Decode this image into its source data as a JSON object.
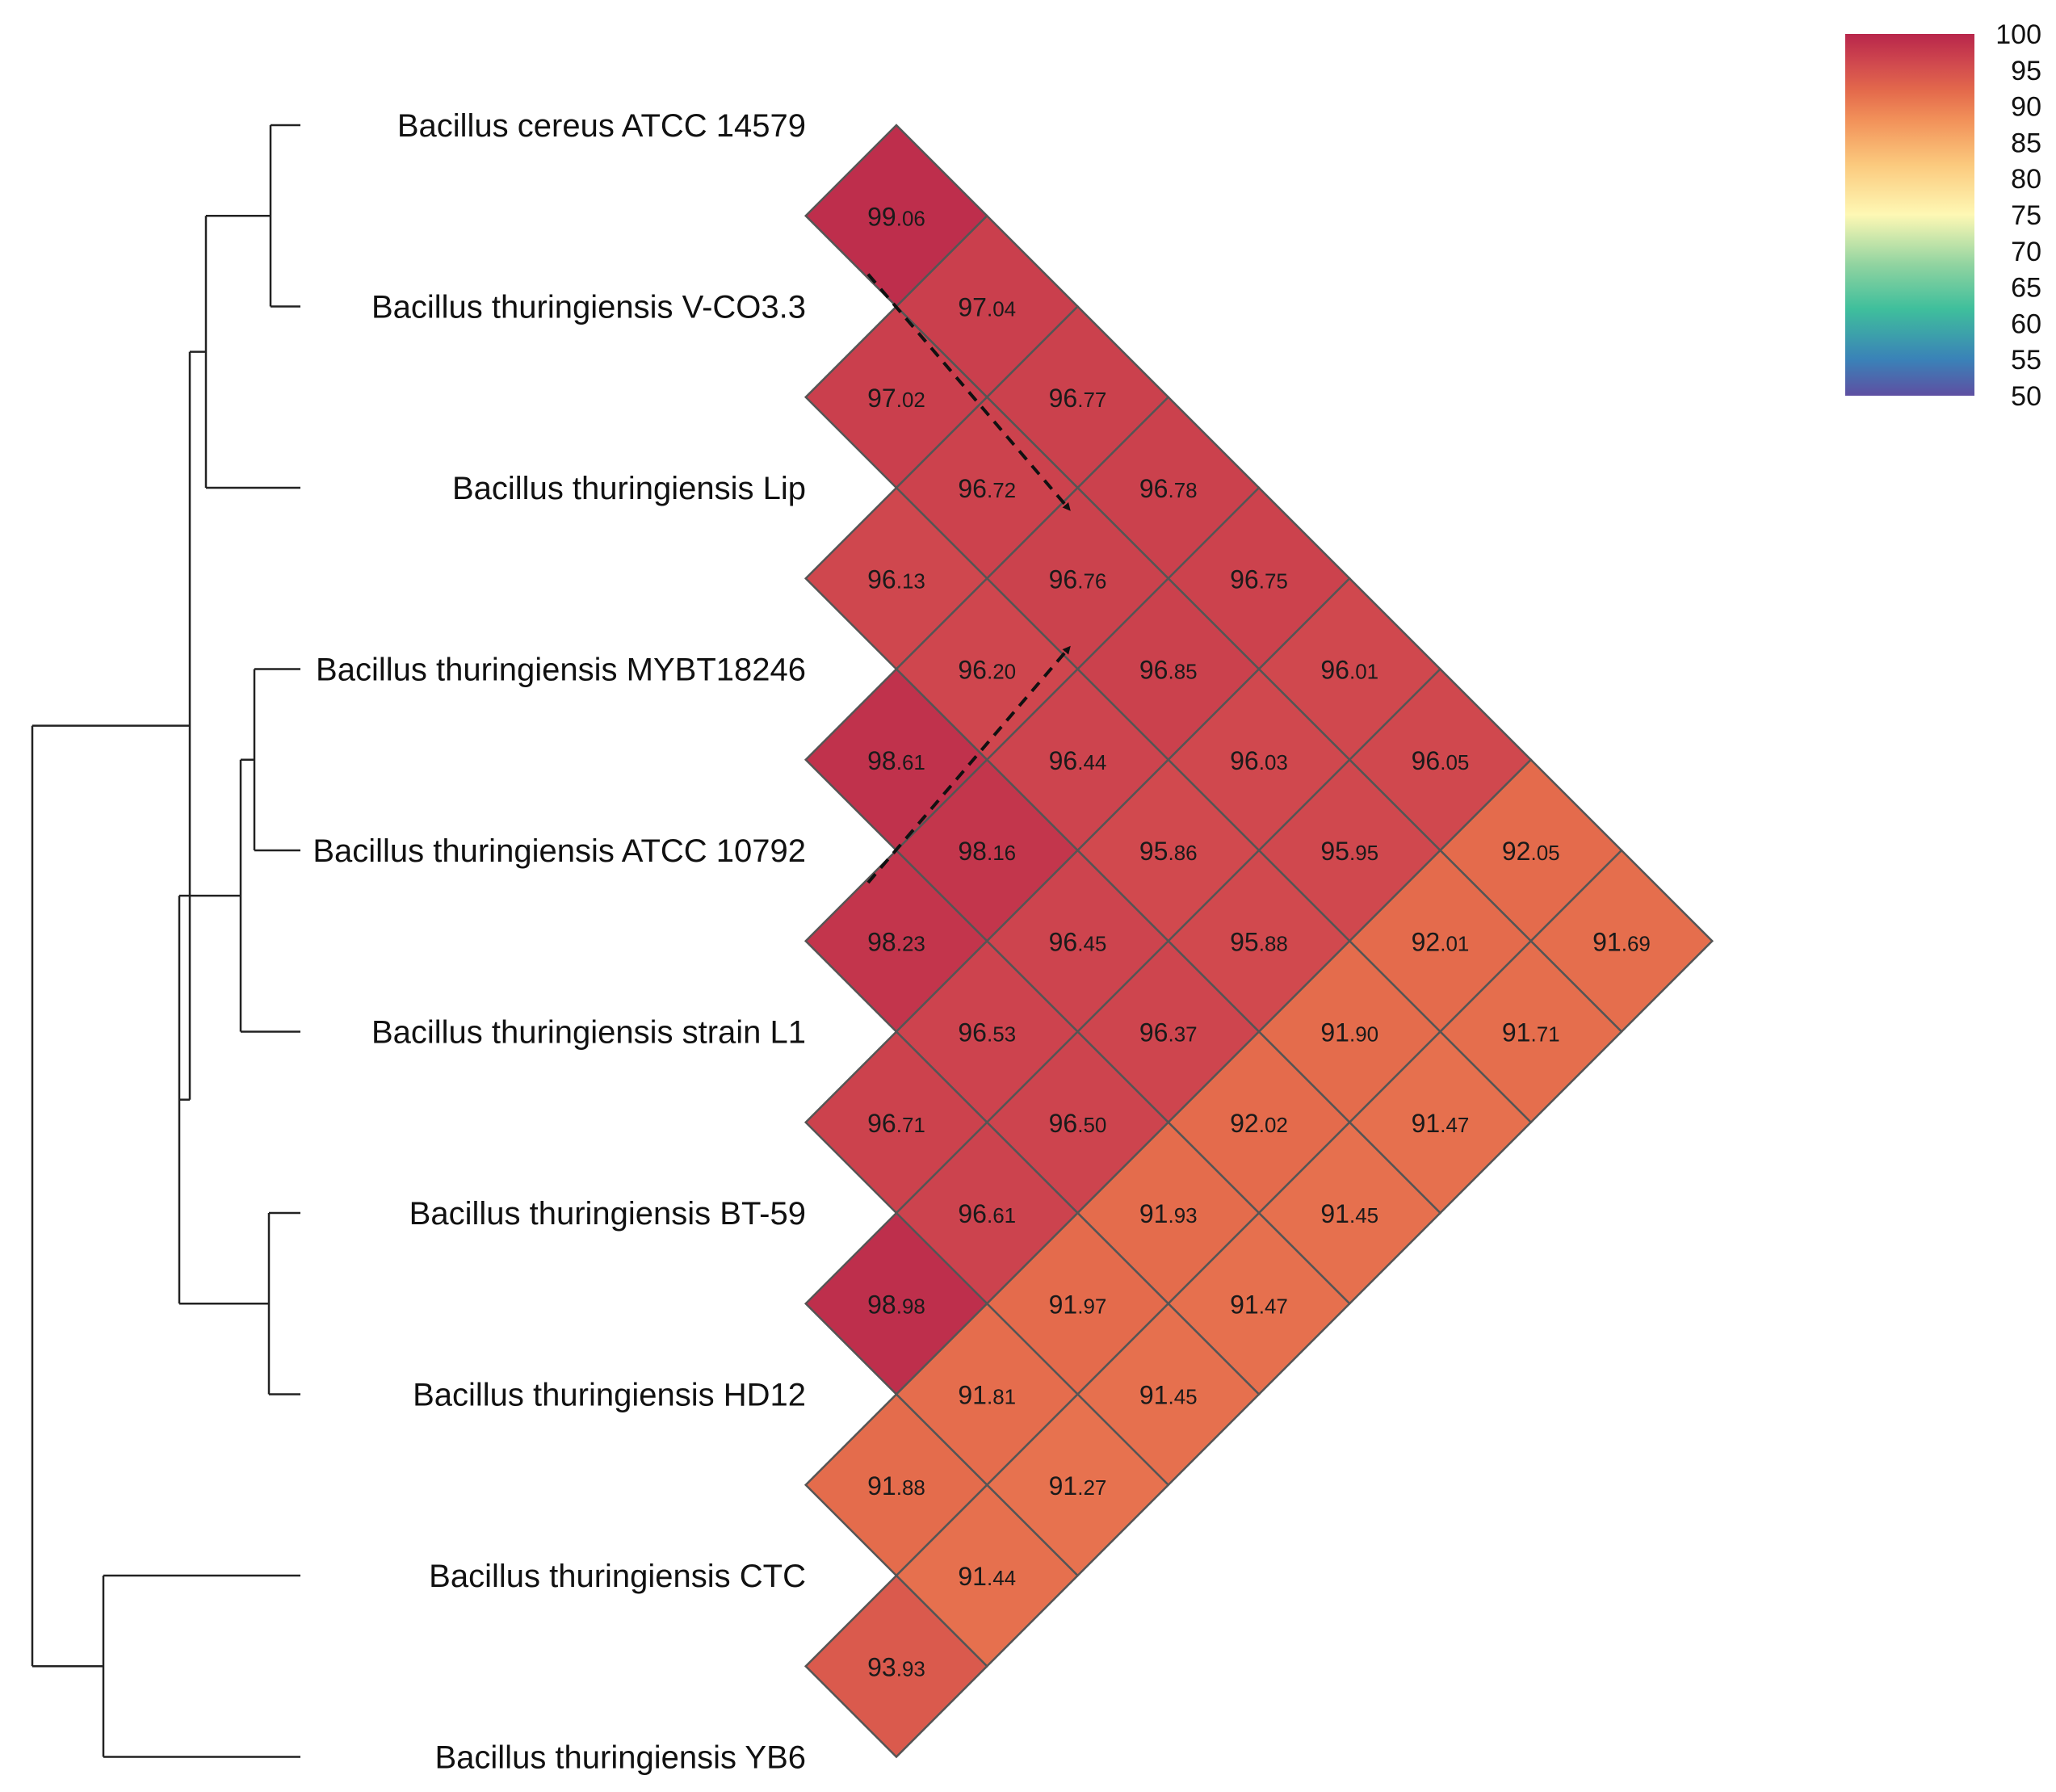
{
  "chart_data": {
    "type": "heatmap",
    "title": "",
    "layout": "lower-triangle rotated 45 degrees with dendrogram",
    "taxa": [
      "Bacillus cereus ATCC 14579",
      "Bacillus thuringiensis V-CO3.3",
      "Bacillus thuringiensis Lip",
      "Bacillus thuringiensis MYBT18246",
      "Bacillus thuringiensis ATCC 10792",
      "Bacillus thuringiensis strain L1",
      "Bacillus thuringiensis BT-59",
      "Bacillus thuringiensis HD12",
      "Bacillus thuringiensis CTC",
      "Bacillus thuringiensis YB6"
    ],
    "value_labels": [
      "99.06",
      "97.04",
      "97.02",
      "96.77",
      "96.72",
      "96.78",
      "96.13",
      "96.76",
      "96.75",
      "96.20",
      "96.85",
      "96.01",
      "98.61",
      "96.44",
      "96.03",
      "96.05",
      "98.16",
      "95.86",
      "95.95",
      "92.05",
      "98.23",
      "96.45",
      "95.88",
      "92.01",
      "91.69",
      "96.53",
      "96.37",
      "91.90",
      "91.71",
      "96.71",
      "96.50",
      "92.02",
      "91.47",
      "96.61",
      "91.93",
      "91.45",
      "98.98",
      "91.97",
      "91.47",
      "91.81",
      "91.45",
      "91.88",
      "91.27",
      "91.44",
      "93.93"
    ],
    "cells": [
      {
        "i": 0,
        "j": 1,
        "value": 99.06
      },
      {
        "i": 0,
        "j": 2,
        "value": 97.04
      },
      {
        "i": 1,
        "j": 2,
        "value": 97.02
      },
      {
        "i": 0,
        "j": 3,
        "value": 96.77
      },
      {
        "i": 1,
        "j": 3,
        "value": 96.72
      },
      {
        "i": 0,
        "j": 4,
        "value": 96.78
      },
      {
        "i": 2,
        "j": 3,
        "value": 96.13
      },
      {
        "i": 1,
        "j": 4,
        "value": 96.76
      },
      {
        "i": 0,
        "j": 5,
        "value": 96.75
      },
      {
        "i": 2,
        "j": 4,
        "value": 96.2
      },
      {
        "i": 1,
        "j": 5,
        "value": 96.85
      },
      {
        "i": 0,
        "j": 6,
        "value": 96.01
      },
      {
        "i": 3,
        "j": 4,
        "value": 98.61
      },
      {
        "i": 2,
        "j": 5,
        "value": 96.44
      },
      {
        "i": 1,
        "j": 6,
        "value": 96.03
      },
      {
        "i": 0,
        "j": 7,
        "value": 96.05
      },
      {
        "i": 3,
        "j": 5,
        "value": 98.16
      },
      {
        "i": 2,
        "j": 6,
        "value": 95.86
      },
      {
        "i": 1,
        "j": 7,
        "value": 95.95
      },
      {
        "i": 0,
        "j": 8,
        "value": 92.05
      },
      {
        "i": 4,
        "j": 5,
        "value": 98.23
      },
      {
        "i": 3,
        "j": 6,
        "value": 96.45
      },
      {
        "i": 2,
        "j": 7,
        "value": 95.88
      },
      {
        "i": 1,
        "j": 8,
        "value": 92.01
      },
      {
        "i": 0,
        "j": 9,
        "value": 91.69
      },
      {
        "i": 4,
        "j": 6,
        "value": 96.53
      },
      {
        "i": 3,
        "j": 7,
        "value": 96.37
      },
      {
        "i": 2,
        "j": 8,
        "value": 91.9
      },
      {
        "i": 1,
        "j": 9,
        "value": 91.71
      },
      {
        "i": 5,
        "j": 6,
        "value": 96.71
      },
      {
        "i": 4,
        "j": 7,
        "value": 96.5
      },
      {
        "i": 3,
        "j": 8,
        "value": 92.02
      },
      {
        "i": 2,
        "j": 9,
        "value": 91.47
      },
      {
        "i": 5,
        "j": 7,
        "value": 96.61
      },
      {
        "i": 4,
        "j": 8,
        "value": 91.93
      },
      {
        "i": 3,
        "j": 9,
        "value": 91.45
      },
      {
        "i": 6,
        "j": 7,
        "value": 98.98
      },
      {
        "i": 5,
        "j": 8,
        "value": 91.97
      },
      {
        "i": 4,
        "j": 9,
        "value": 91.47
      },
      {
        "i": 6,
        "j": 8,
        "value": 91.81
      },
      {
        "i": 5,
        "j": 9,
        "value": 91.45
      },
      {
        "i": 7,
        "j": 8,
        "value": 91.88
      },
      {
        "i": 6,
        "j": 9,
        "value": 91.27
      },
      {
        "i": 7,
        "j": 9,
        "value": 91.44
      },
      {
        "i": 8,
        "j": 9,
        "value": 93.93
      }
    ],
    "colorbar": {
      "min": 50,
      "max": 100,
      "ticks": [
        "100",
        "95",
        "90",
        "85",
        "80",
        "75",
        "70",
        "65",
        "60",
        "55",
        "50"
      ],
      "stops": [
        {
          "value": 50,
          "color": "#5e4fa2"
        },
        {
          "value": 55,
          "color": "#3a82b8"
        },
        {
          "value": 62,
          "color": "#3fbf9c"
        },
        {
          "value": 68,
          "color": "#8fd3a0"
        },
        {
          "value": 75,
          "color": "#fef8b4"
        },
        {
          "value": 82,
          "color": "#fbc97d"
        },
        {
          "value": 88,
          "color": "#f2925a"
        },
        {
          "value": 92,
          "color": "#e46b4c"
        },
        {
          "value": 96,
          "color": "#d0484e"
        },
        {
          "value": 100,
          "color": "#b8264b"
        }
      ]
    },
    "dendrogram": {
      "clade": [
        [
          [
            [
              0,
              1
            ],
            2
          ],
          [
            [
              [
                3,
                4
              ],
              5
            ],
            [
              6,
              7
            ]
          ]
        ],
        [
          8,
          9
        ]
      ]
    },
    "annotations": [
      {
        "type": "dashed-arrow",
        "from_taxon": 1,
        "to_cell": {
          "i": 1,
          "j": 4
        }
      },
      {
        "type": "dashed-arrow",
        "from_taxon": 4,
        "to_cell": {
          "i": 1,
          "j": 4
        }
      }
    ]
  }
}
